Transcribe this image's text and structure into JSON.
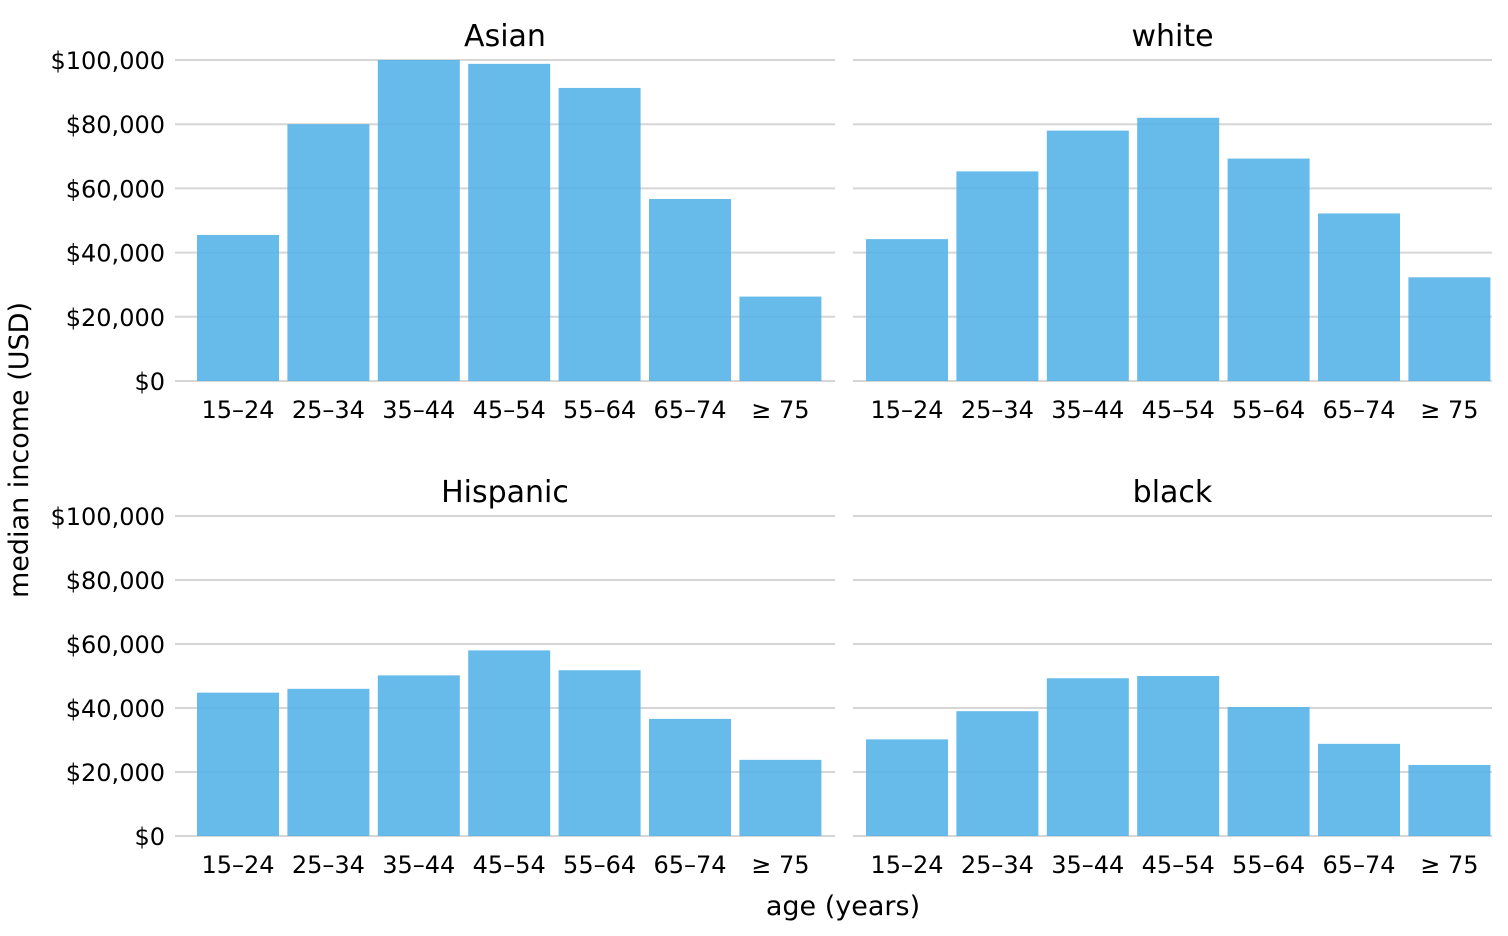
{
  "chart_data": {
    "type": "bar",
    "xlabel": "age (years)",
    "ylabel": "median income (USD)",
    "ylim": [
      0,
      100000
    ],
    "yticks": [
      "$0",
      "$20,000",
      "$40,000",
      "$60,000",
      "$80,000",
      "$100,000"
    ],
    "ytick_values": [
      0,
      20000,
      40000,
      60000,
      80000,
      100000
    ],
    "categories": [
      "15–24",
      "25–34",
      "35–44",
      "45–54",
      "55–64",
      "65–74",
      "≥ 75"
    ],
    "bar_color": "#56b4e9",
    "grid": true,
    "facets": [
      {
        "title": "Asian",
        "values": [
          45500,
          80000,
          100000,
          98800,
          91300,
          56700,
          26300
        ]
      },
      {
        "title": "white",
        "values": [
          44200,
          65300,
          78000,
          82000,
          69300,
          52200,
          32300
        ]
      },
      {
        "title": "Hispanic",
        "values": [
          44800,
          46000,
          50200,
          58000,
          51800,
          36600,
          23800
        ]
      },
      {
        "title": "black",
        "values": [
          30200,
          39000,
          49300,
          50000,
          40300,
          28800,
          22200
        ]
      }
    ]
  }
}
